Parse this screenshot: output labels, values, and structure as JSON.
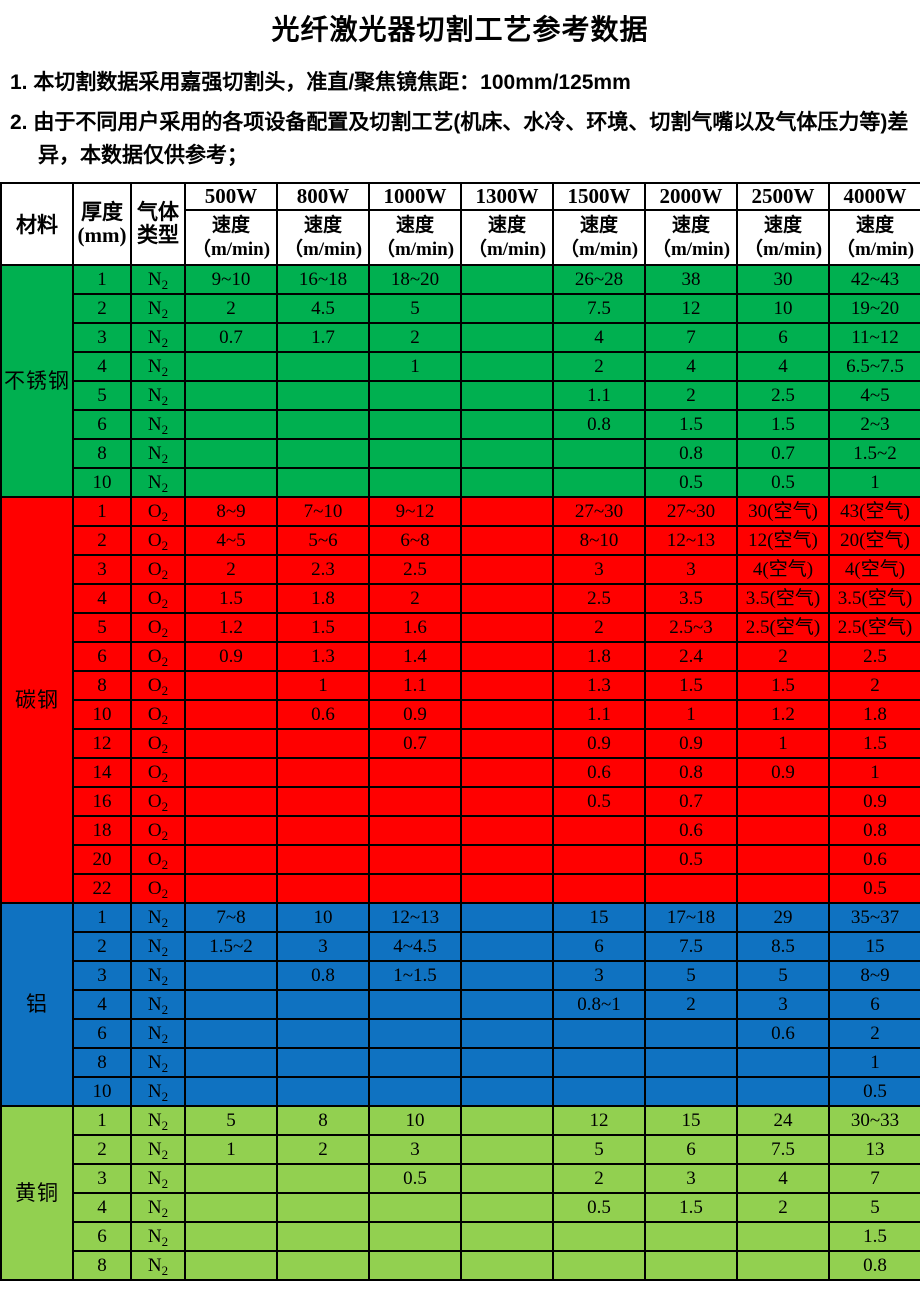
{
  "title": "光纤激光器切割工艺参考数据",
  "notes": [
    "1. 本切割数据采用嘉强切割头，准直/聚焦镜焦距：100mm/125mm",
    "2. 由于不同用户采用的各项设备配置及切割工艺(机床、水冷、环境、切割气嘴以及气体压力等)差异，本数据仅供参考；"
  ],
  "colors": {
    "stainless": "#00B050",
    "carbon": "#FF0000",
    "aluminum": "#0F72C1",
    "brass": "#92D050",
    "border": "#000000"
  },
  "table": {
    "header": {
      "material": "材料",
      "thickness_line1": "厚度",
      "thickness_line2": "(mm)",
      "gas_line1": "气体",
      "gas_line2": "类型",
      "powers": [
        "500W",
        "800W",
        "1000W",
        "1300W",
        "1500W",
        "2000W",
        "2500W",
        "4000W"
      ],
      "speed_label": "速度",
      "speed_unit": "（m/min)"
    },
    "sections": [
      {
        "id": "stainless-steel",
        "material": "不锈钢",
        "color_key": "stainless",
        "gas": "N2",
        "rows": [
          {
            "thickness": "1",
            "speeds": [
              "9~10",
              "16~18",
              "18~20",
              "",
              "26~28",
              "38",
              "30",
              "42~43"
            ]
          },
          {
            "thickness": "2",
            "speeds": [
              "2",
              "4.5",
              "5",
              "",
              "7.5",
              "12",
              "10",
              "19~20"
            ]
          },
          {
            "thickness": "3",
            "speeds": [
              "0.7",
              "1.7",
              "2",
              "",
              "4",
              "7",
              "6",
              "11~12"
            ]
          },
          {
            "thickness": "4",
            "speeds": [
              "",
              "",
              "1",
              "",
              "2",
              "4",
              "4",
              "6.5~7.5"
            ]
          },
          {
            "thickness": "5",
            "speeds": [
              "",
              "",
              "",
              "",
              "1.1",
              "2",
              "2.5",
              "4~5"
            ]
          },
          {
            "thickness": "6",
            "speeds": [
              "",
              "",
              "",
              "",
              "0.8",
              "1.5",
              "1.5",
              "2~3"
            ]
          },
          {
            "thickness": "8",
            "speeds": [
              "",
              "",
              "",
              "",
              "",
              "0.8",
              "0.7",
              "1.5~2"
            ]
          },
          {
            "thickness": "10",
            "speeds": [
              "",
              "",
              "",
              "",
              "",
              "0.5",
              "0.5",
              "1"
            ]
          }
        ]
      },
      {
        "id": "carbon-steel",
        "material": "碳钢",
        "color_key": "carbon",
        "gas": "O2",
        "rows": [
          {
            "thickness": "1",
            "speeds": [
              "8~9",
              "7~10",
              "9~12",
              "",
              "27~30",
              "27~30",
              "30(空气)",
              "43(空气)"
            ]
          },
          {
            "thickness": "2",
            "speeds": [
              "4~5",
              "5~6",
              "6~8",
              "",
              "8~10",
              "12~13",
              "12(空气)",
              "20(空气)"
            ]
          },
          {
            "thickness": "3",
            "speeds": [
              "2",
              "2.3",
              "2.5",
              "",
              "3",
              "3",
              "4(空气)",
              "4(空气)"
            ]
          },
          {
            "thickness": "4",
            "speeds": [
              "1.5",
              "1.8",
              "2",
              "",
              "2.5",
              "3.5",
              "3.5(空气)",
              "3.5(空气)"
            ]
          },
          {
            "thickness": "5",
            "speeds": [
              "1.2",
              "1.5",
              "1.6",
              "",
              "2",
              "2.5~3",
              "2.5(空气)",
              "2.5(空气)"
            ]
          },
          {
            "thickness": "6",
            "speeds": [
              "0.9",
              "1.3",
              "1.4",
              "",
              "1.8",
              "2.4",
              "2",
              "2.5"
            ]
          },
          {
            "thickness": "8",
            "speeds": [
              "",
              "1",
              "1.1",
              "",
              "1.3",
              "1.5",
              "1.5",
              "2"
            ]
          },
          {
            "thickness": "10",
            "speeds": [
              "",
              "0.6",
              "0.9",
              "",
              "1.1",
              "1",
              "1.2",
              "1.8"
            ]
          },
          {
            "thickness": "12",
            "speeds": [
              "",
              "",
              "0.7",
              "",
              "0.9",
              "0.9",
              "1",
              "1.5"
            ]
          },
          {
            "thickness": "14",
            "speeds": [
              "",
              "",
              "",
              "",
              "0.6",
              "0.8",
              "0.9",
              "1"
            ]
          },
          {
            "thickness": "16",
            "speeds": [
              "",
              "",
              "",
              "",
              "0.5",
              "0.7",
              "",
              "0.9"
            ]
          },
          {
            "thickness": "18",
            "speeds": [
              "",
              "",
              "",
              "",
              "",
              "0.6",
              "",
              "0.8"
            ]
          },
          {
            "thickness": "20",
            "speeds": [
              "",
              "",
              "",
              "",
              "",
              "0.5",
              "",
              "0.6"
            ]
          },
          {
            "thickness": "22",
            "speeds": [
              "",
              "",
              "",
              "",
              "",
              "",
              "",
              "0.5"
            ]
          }
        ]
      },
      {
        "id": "aluminum",
        "material": "铝",
        "color_key": "aluminum",
        "gas": "N2",
        "rows": [
          {
            "thickness": "1",
            "speeds": [
              "7~8",
              "10",
              "12~13",
              "",
              "15",
              "17~18",
              "29",
              "35~37"
            ]
          },
          {
            "thickness": "2",
            "speeds": [
              "1.5~2",
              "3",
              "4~4.5",
              "",
              "6",
              "7.5",
              "8.5",
              "15"
            ]
          },
          {
            "thickness": "3",
            "speeds": [
              "",
              "0.8",
              "1~1.5",
              "",
              "3",
              "5",
              "5",
              "8~9"
            ]
          },
          {
            "thickness": "4",
            "speeds": [
              "",
              "",
              "",
              "",
              "0.8~1",
              "2",
              "3",
              "6"
            ]
          },
          {
            "thickness": "6",
            "speeds": [
              "",
              "",
              "",
              "",
              "",
              "",
              "0.6",
              "2"
            ]
          },
          {
            "thickness": "8",
            "speeds": [
              "",
              "",
              "",
              "",
              "",
              "",
              "",
              "1"
            ]
          },
          {
            "thickness": "10",
            "speeds": [
              "",
              "",
              "",
              "",
              "",
              "",
              "",
              "0.5"
            ]
          }
        ]
      },
      {
        "id": "brass",
        "material": "黄铜",
        "color_key": "brass",
        "gas": "N2",
        "rows": [
          {
            "thickness": "1",
            "speeds": [
              "5",
              "8",
              "10",
              "",
              "12",
              "15",
              "24",
              "30~33"
            ]
          },
          {
            "thickness": "2",
            "speeds": [
              "1",
              "2",
              "3",
              "",
              "5",
              "6",
              "7.5",
              "13"
            ]
          },
          {
            "thickness": "3",
            "speeds": [
              "",
              "",
              "0.5",
              "",
              "2",
              "3",
              "4",
              "7"
            ]
          },
          {
            "thickness": "4",
            "speeds": [
              "",
              "",
              "",
              "",
              "0.5",
              "1.5",
              "2",
              "5"
            ]
          },
          {
            "thickness": "6",
            "speeds": [
              "",
              "",
              "",
              "",
              "",
              "",
              "",
              "1.5"
            ]
          },
          {
            "thickness": "8",
            "speeds": [
              "",
              "",
              "",
              "",
              "",
              "",
              "",
              "0.8"
            ]
          }
        ]
      }
    ]
  }
}
